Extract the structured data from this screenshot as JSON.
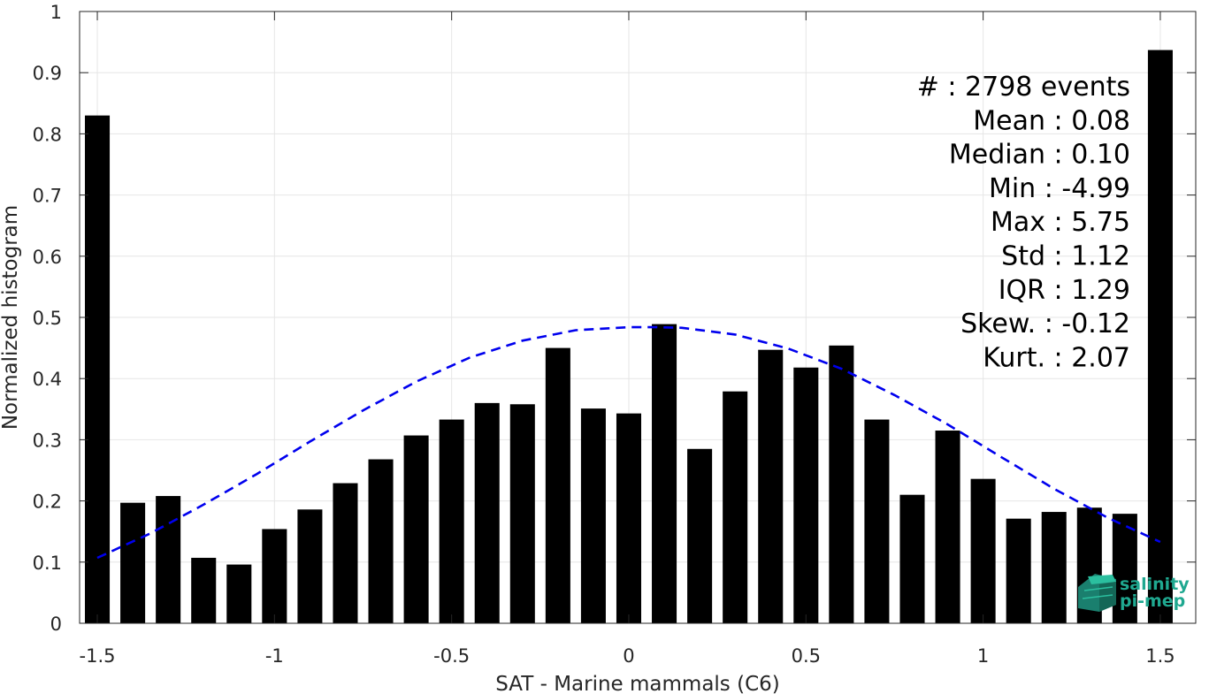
{
  "chart_data": {
    "type": "bar",
    "xlabel": "SAT - Marine mammals (C6)",
    "ylabel": "Normalized histogram",
    "xlim": [
      -1.55,
      1.6
    ],
    "ylim": [
      0,
      1
    ],
    "grid": true,
    "x_ticks": [
      -1.5,
      -1,
      -0.5,
      0,
      0.5,
      1,
      1.5
    ],
    "x_tick_labels": [
      "-1.5",
      "-1",
      "-0.5",
      "0",
      "0.5",
      "1",
      "1.5"
    ],
    "y_ticks": [
      0,
      0.1,
      0.2,
      0.3,
      0.4,
      0.5,
      0.6,
      0.7,
      0.8,
      0.9,
      1
    ],
    "y_tick_labels": [
      "0",
      "0.1",
      "0.2",
      "0.3",
      "0.4",
      "0.5",
      "0.6",
      "0.7",
      "0.8",
      "0.9",
      "1"
    ],
    "bar_width": 0.07,
    "bar_color": "#000000",
    "bars": {
      "x": [
        -1.5,
        -1.4,
        -1.3,
        -1.2,
        -1.1,
        -1.0,
        -0.9,
        -0.8,
        -0.7,
        -0.6,
        -0.5,
        -0.4,
        -0.3,
        -0.2,
        -0.1,
        0.0,
        0.1,
        0.2,
        0.3,
        0.4,
        0.5,
        0.6,
        0.7,
        0.8,
        0.9,
        1.0,
        1.1,
        1.2,
        1.3,
        1.4,
        1.5
      ],
      "values": [
        0.83,
        0.197,
        0.208,
        0.107,
        0.096,
        0.154,
        0.186,
        0.229,
        0.268,
        0.307,
        0.333,
        0.36,
        0.358,
        0.45,
        0.351,
        0.343,
        0.489,
        0.285,
        0.379,
        0.447,
        0.418,
        0.454,
        0.333,
        0.21,
        0.315,
        0.236,
        0.171,
        0.182,
        0.189,
        0.179,
        0.937
      ]
    },
    "fit_curve": {
      "style": "dashed",
      "color": "#0000ee",
      "x": [
        -1.5,
        -1.35,
        -1.2,
        -1.05,
        -0.9,
        -0.75,
        -0.6,
        -0.45,
        -0.3,
        -0.15,
        0.0,
        0.08,
        0.15,
        0.3,
        0.45,
        0.6,
        0.75,
        0.9,
        1.05,
        1.2,
        1.35,
        1.5
      ],
      "y": [
        0.107,
        0.147,
        0.194,
        0.244,
        0.297,
        0.348,
        0.395,
        0.434,
        0.462,
        0.479,
        0.484,
        0.484,
        0.483,
        0.472,
        0.449,
        0.416,
        0.373,
        0.325,
        0.272,
        0.22,
        0.173,
        0.133
      ]
    },
    "annotations": [
      "#  : 2798 events",
      "Mean : 0.08",
      "Median : 0.10",
      "Min : -4.99",
      "Max : 5.75",
      "Std : 1.12",
      "IQR : 1.29",
      "Skew. : -0.12",
      "Kurt. : 2.07"
    ],
    "annotation_placement": "top-right"
  },
  "logo": {
    "line1": "salinity",
    "line2": "pi-mep",
    "color": "#1fa890"
  }
}
